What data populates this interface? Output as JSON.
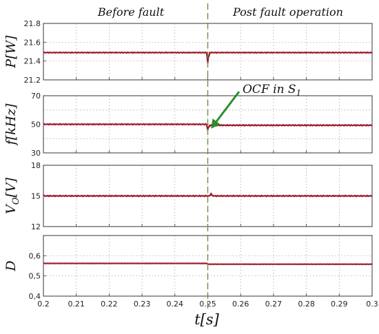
{
  "chart_data": {
    "type": "line",
    "x_range": [
      0.2,
      0.3
    ],
    "x_ticks": [
      "0.2",
      "0.21",
      "0.22",
      "0.23",
      "0.24",
      "0.25",
      "0.26",
      "0.27",
      "0.28",
      "0.29",
      "0.3"
    ],
    "xlabel": "t[s]",
    "grid": true,
    "fault_time": 0.25,
    "line_color": "#a01c2a",
    "marker_line_color": "#6b8e3a",
    "annotation_color": "#2e8b2e",
    "phase_labels": {
      "before": "Before fault",
      "after": "Post fault operation"
    },
    "annotation": {
      "text": "OCF in S",
      "subscript": "1",
      "x": 0.251,
      "y": 47
    },
    "panels": [
      {
        "ylabel": "P[W]",
        "ylim": [
          21.2,
          21.8
        ],
        "yticks": [
          "21.2",
          "21.4",
          "21.6",
          "21.8"
        ],
        "series": {
          "baseline": 21.49,
          "post_baseline": 21.49,
          "ripple": 0.005,
          "disturbance": {
            "x": 0.25,
            "min": 21.38
          }
        }
      },
      {
        "ylabel": "f[kHz]",
        "ylim": [
          30,
          70
        ],
        "yticks": [
          "30",
          "50",
          "70"
        ],
        "series": {
          "baseline": 50,
          "post_baseline": 49.3,
          "ripple": 0.4,
          "disturbance": {
            "x": 0.25,
            "min": 46
          }
        }
      },
      {
        "ylabel": "V_O[V]",
        "ylim": [
          12,
          18
        ],
        "yticks": [
          "12",
          "15",
          "18"
        ],
        "series": {
          "baseline": 15,
          "post_baseline": 15,
          "ripple": 0.06,
          "disturbance": {
            "x": 0.251,
            "max": 15.25
          }
        }
      },
      {
        "ylabel": "D",
        "ylim": [
          0.4,
          0.7
        ],
        "yticks": [
          "0,4",
          "0,5",
          "0,6"
        ],
        "series": {
          "baseline": 0.562,
          "post_baseline": 0.558,
          "ripple": 0.001,
          "disturbance": null
        }
      }
    ]
  }
}
